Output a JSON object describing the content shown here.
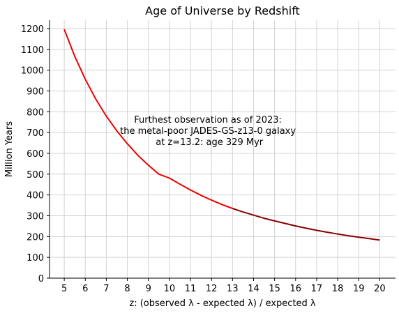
{
  "chart_data": {
    "type": "line",
    "title": "Age of Universe by Redshift",
    "xlabel": "z: (observed λ - expected λ) / expected λ",
    "ylabel": "Million Years",
    "xlim": [
      4.3,
      20.75
    ],
    "ylim": [
      0,
      1240
    ],
    "xticks": [
      5,
      6,
      7,
      8,
      9,
      10,
      11,
      12,
      13,
      14,
      15,
      16,
      17,
      18,
      19,
      20
    ],
    "yticks": [
      0,
      100,
      200,
      300,
      400,
      500,
      600,
      700,
      800,
      900,
      1000,
      1100,
      1200
    ],
    "grid": true,
    "series": [
      {
        "color": "#ee0000",
        "x": [
          5,
          5.5,
          6,
          6.5,
          7,
          7.5,
          8,
          8.5,
          9,
          9.5,
          10,
          10.5,
          11,
          11.5,
          12,
          12.5,
          13
        ],
        "y": [
          1196,
          1066,
          956,
          861,
          779,
          708,
          646,
          591,
          543,
          500,
          481,
          452,
          424,
          398,
          375,
          354,
          335
        ]
      },
      {
        "color": "#8b0000",
        "x": [
          13,
          13.5,
          14,
          14.5,
          15,
          15.5,
          16,
          16.5,
          17,
          17.5,
          18,
          18.5,
          19,
          19.5,
          20
        ],
        "y": [
          335,
          318,
          303,
          288,
          275,
          263,
          251,
          240,
          230,
          221,
          212,
          204,
          197,
          190,
          183
        ]
      }
    ],
    "annotation": {
      "lines": [
        "Furthest observation as of 2023:",
        "the metal-poor JADES-GS-z13-0 galaxy",
        "at z=13.2: age 329 Myr"
      ],
      "x": 11.9,
      "y": 710
    }
  }
}
